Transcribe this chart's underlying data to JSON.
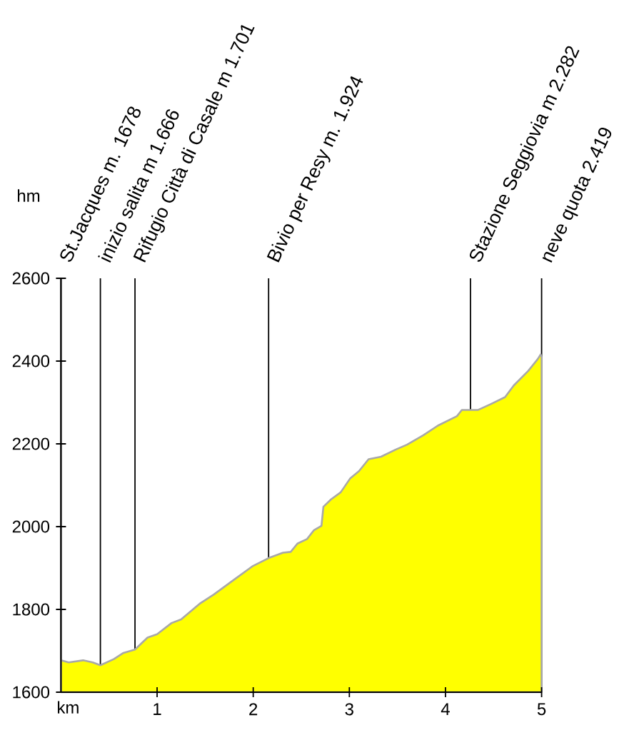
{
  "chart_data": {
    "type": "area",
    "xlabel": "km",
    "ylabel": "hm",
    "color": "#ffff00",
    "x": [
      0,
      0.08,
      0.23,
      0.33,
      0.41,
      0.55,
      0.65,
      0.77,
      0.9,
      1.0,
      1.15,
      1.25,
      1.45,
      1.59,
      1.79,
      1.99,
      2.16,
      2.31,
      2.39,
      2.46,
      2.56,
      2.63,
      2.71,
      2.73,
      2.81,
      2.91,
      3.01,
      3.1,
      3.2,
      3.33,
      3.48,
      3.6,
      3.77,
      3.92,
      4.12,
      4.17,
      4.34,
      4.47,
      4.62,
      4.71,
      4.86,
      4.96,
      4.99,
      5.0
    ],
    "values": [
      1677,
      1672,
      1677,
      1672,
      1665,
      1680,
      1695,
      1703,
      1732,
      1740,
      1767,
      1776,
      1815,
      1836,
      1870,
      1904,
      1924,
      1937,
      1939,
      1959,
      1970,
      1991,
      2002,
      2048,
      2066,
      2083,
      2117,
      2134,
      2163,
      2169,
      2186,
      2198,
      2221,
      2244,
      2267,
      2282,
      2282,
      2296,
      2313,
      2341,
      2376,
      2405,
      2416,
      2410
    ],
    "xlim": [
      0,
      5
    ],
    "xticks": [
      1,
      2,
      3,
      4,
      5
    ],
    "ylim": [
      1600,
      2600
    ],
    "yticks": [
      1600,
      1800,
      2000,
      2200,
      2400,
      2600
    ],
    "ref_lines": [
      {
        "axis": "x",
        "value": 0,
        "label": "St.Jacques m. 1678",
        "color": "#000000"
      },
      {
        "axis": "x",
        "value": 0.41,
        "label": "inizio salita m 1.666",
        "color": "#000000"
      },
      {
        "axis": "x",
        "value": 0.77,
        "label": "Rifugio Città di Casale m 1.701",
        "color": "#000000"
      },
      {
        "axis": "x",
        "value": 2.16,
        "label": "Bivio per Resy m. 1.924",
        "color": "#000000"
      },
      {
        "axis": "x",
        "value": 4.26,
        "label": "Stazione Seggiovia m 2.282",
        "color": "#000000"
      },
      {
        "axis": "x",
        "value": 5.0,
        "label": "neve quota 2.419",
        "color": "#000000"
      }
    ]
  }
}
